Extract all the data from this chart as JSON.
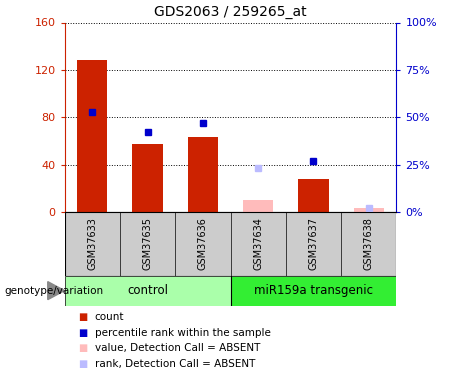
{
  "title": "GDS2063 / 259265_at",
  "samples": [
    "GSM37633",
    "GSM37635",
    "GSM37636",
    "GSM37634",
    "GSM37637",
    "GSM37638"
  ],
  "red_values": [
    128,
    57,
    63,
    10,
    28,
    3
  ],
  "blue_values": [
    53,
    42,
    47,
    23,
    27,
    2
  ],
  "absent_mask": [
    false,
    false,
    false,
    true,
    false,
    true
  ],
  "ylim_left": [
    0,
    160
  ],
  "ylim_right": [
    0,
    100
  ],
  "yticks_left": [
    0,
    40,
    80,
    120,
    160
  ],
  "yticks_right": [
    0,
    25,
    50,
    75,
    100
  ],
  "ytick_labels_left": [
    "0",
    "40",
    "80",
    "120",
    "160"
  ],
  "ytick_labels_right": [
    "0%",
    "25%",
    "50%",
    "75%",
    "100%"
  ],
  "left_axis_color": "#CC2200",
  "right_axis_color": "#0000CC",
  "red_present_color": "#CC2200",
  "red_absent_color": "#FFBBBB",
  "blue_present_color": "#0000CC",
  "blue_absent_color": "#BBBBFF",
  "control_bg": "#AAFFAA",
  "transgenic_bg": "#33EE33",
  "sample_label_bg": "#CCCCCC",
  "legend_items": [
    {
      "color": "#CC2200",
      "label": "count"
    },
    {
      "color": "#0000CC",
      "label": "percentile rank within the sample"
    },
    {
      "color": "#FFBBBB",
      "label": "value, Detection Call = ABSENT"
    },
    {
      "color": "#BBBBFF",
      "label": "rank, Detection Call = ABSENT"
    }
  ]
}
